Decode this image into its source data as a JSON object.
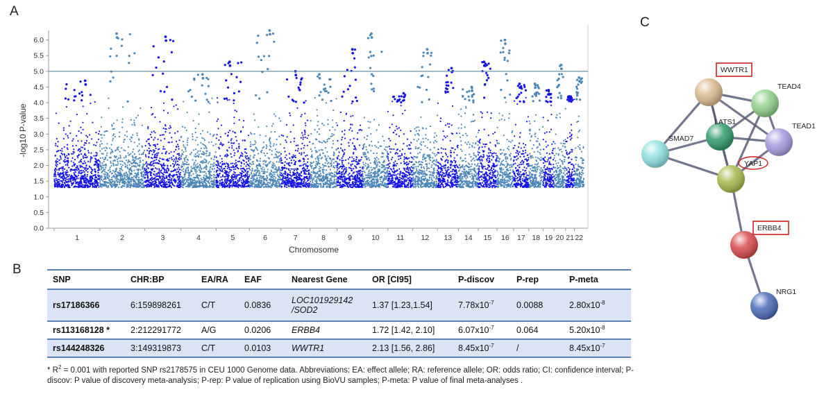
{
  "panels": {
    "a": "A",
    "b": "B",
    "c": "C"
  },
  "chart_data": {
    "type": "scatter",
    "title": "",
    "xlabel": "Chromosome",
    "ylabel": "-log10 P-value",
    "ylim": [
      0,
      6.3
    ],
    "yticks": [
      "0.0",
      "0.5",
      "1.0",
      "1.5",
      "2.0",
      "2.5",
      "3.0",
      "3.5",
      "4.0",
      "4.5",
      "5.0",
      "5.5",
      "6.0"
    ],
    "threshold": 5.0,
    "min_plotted": 1.3,
    "chromosome_labels": [
      "1",
      "2",
      "3",
      "4",
      "5",
      "6",
      "7",
      "8",
      "9",
      "10",
      "11",
      "12",
      "13",
      "14",
      "15",
      "16",
      "17",
      "18",
      "19",
      "20",
      "21",
      "22"
    ],
    "chromosome_max": [
      4.7,
      6.2,
      6.1,
      4.9,
      5.3,
      6.3,
      5.0,
      4.9,
      5.7,
      6.2,
      4.3,
      5.7,
      5.1,
      4.5,
      5.3,
      6.0,
      4.6,
      4.6,
      4.4,
      5.2,
      4.2,
      4.8
    ],
    "colors": {
      "odd": "#1515e8",
      "even": "#4a86b8",
      "threshold_line": "#5a8aa8"
    }
  },
  "network": {
    "nodes": [
      {
        "id": "WWTR1",
        "label": "WWTR1",
        "color": "#d9b98c",
        "boxed": true
      },
      {
        "id": "TEAD4",
        "label": "TEAD4",
        "color": "#8fd08a",
        "boxed": false
      },
      {
        "id": "LATS1",
        "label": "LATS1",
        "color": "#2f9a6a",
        "boxed": false
      },
      {
        "id": "TEAD1",
        "label": "TEAD1",
        "color": "#a99ae0",
        "boxed": false
      },
      {
        "id": "SMAD7",
        "label": "SMAD7",
        "color": "#8fe0e0",
        "boxed": false
      },
      {
        "id": "YAP1",
        "label": "YAP1",
        "color": "#a9b84c",
        "circled": true
      },
      {
        "id": "ERBB4",
        "label": "ERBB4",
        "color": "#d94a4a",
        "boxed": true
      },
      {
        "id": "NRG1",
        "label": "NRG1",
        "color": "#4a6ab8",
        "boxed": false
      }
    ]
  },
  "table": {
    "headers": [
      "SNP",
      "CHR:BP",
      "EA/RA",
      "EAF",
      "Nearest Gene",
      "OR [CI95]",
      "P-discov",
      "P-rep",
      "P-meta"
    ],
    "rows": [
      {
        "snp": "rs17186366",
        "chrbp": "6:159898261",
        "eara": "C/T",
        "eaf": "0.0836",
        "gene_line1": "LOC101929142",
        "gene_line2": "/SOD2",
        "or": "1.37 [1.23,1.54]",
        "pdisc_mant": "7.78x10",
        "pdisc_exp": "-7",
        "prep": "0.0088",
        "pmeta_mant": "2.80x10",
        "pmeta_exp": "-8"
      },
      {
        "snp": "rs113168128 *",
        "chrbp": "2:212291772",
        "eara": "A/G",
        "eaf": "0.0206",
        "gene_line1": "ERBB4",
        "gene_line2": "",
        "or": "1.72 [1.42, 2.10]",
        "pdisc_mant": "6.07x10",
        "pdisc_exp": "-7",
        "prep": "0.064",
        "pmeta_mant": "5.20x10",
        "pmeta_exp": "-8"
      },
      {
        "snp": "rs144248326",
        "chrbp": "3:149319873",
        "eara": "C/T",
        "eaf": "0.0103",
        "gene_line1": "WWTR1",
        "gene_line2": "",
        "or": "2.13 [1.56, 2.86]",
        "pdisc_mant": "8.45x10",
        "pdisc_exp": "-7",
        "prep": "/",
        "pmeta_mant": "8.45x10",
        "pmeta_exp": "-7"
      }
    ]
  },
  "footnote": {
    "prefix": "* R",
    "sup": "2",
    "text": " = 0.001 with reported SNP rs2178575 in CEU 1000 Genome data. Abbreviations: EA: effect allele; RA: reference allele; OR: odds ratio; CI: confidence interval; P-discov: P value of discovery meta-analysis; P-rep: P value of replication using BioVU samples; P-meta: P value of final meta-analyses ."
  }
}
